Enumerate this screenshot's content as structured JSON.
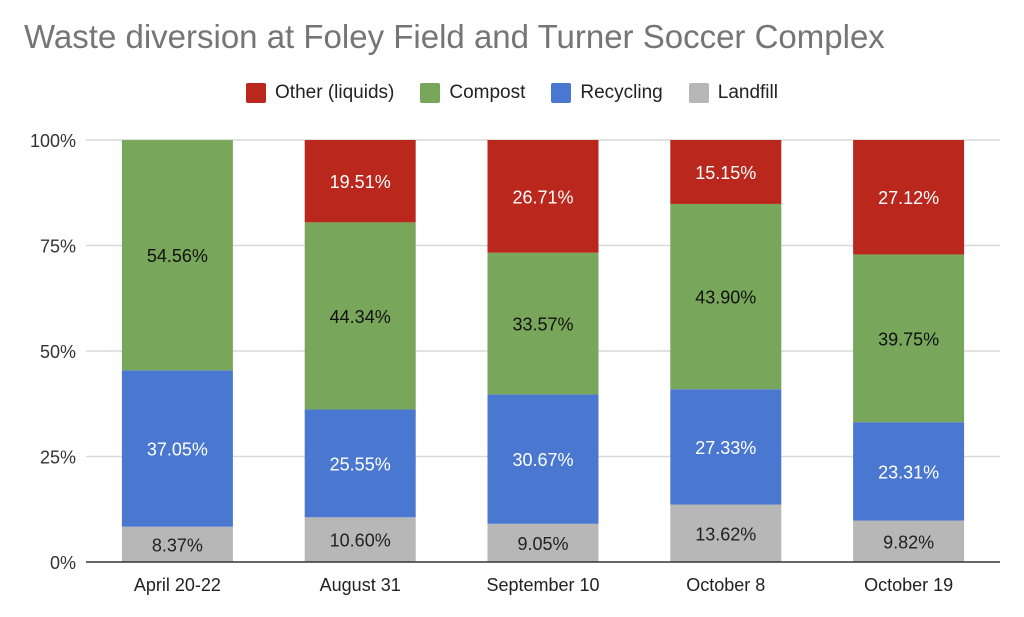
{
  "chart_data": {
    "type": "bar",
    "stacked": "percent",
    "title": "Waste diversion at Foley Field and Turner Soccer Complex",
    "xlabel": "",
    "ylabel": "",
    "ylim": [
      0,
      100
    ],
    "yticks": [
      "0%",
      "25%",
      "50%",
      "75%",
      "100%"
    ],
    "grid": true,
    "legend_position": "top",
    "categories": [
      "April 20-22",
      "August 31",
      "September 10",
      "October 8",
      "October 19"
    ],
    "series": [
      {
        "name": "Landfill",
        "color": "#b7b7b7",
        "label_color": "#222222",
        "values": [
          8.37,
          10.6,
          9.05,
          13.62,
          9.82
        ],
        "labels": [
          "8.37%",
          "10.60%",
          "9.05%",
          "13.62%",
          "9.82%"
        ]
      },
      {
        "name": "Recycling",
        "color": "#4a78d1",
        "label_color": "#ffffff",
        "values": [
          37.05,
          25.55,
          30.67,
          27.33,
          23.31
        ],
        "labels": [
          "37.05%",
          "25.55%",
          "30.67%",
          "27.33%",
          "23.31%"
        ]
      },
      {
        "name": "Compost",
        "color": "#78a65a",
        "label_color": "#111111",
        "values": [
          54.56,
          44.34,
          33.57,
          43.9,
          39.75
        ],
        "labels": [
          "54.56%",
          "44.34%",
          "33.57%",
          "43.90%",
          "39.75%"
        ]
      },
      {
        "name": "Other (liquids)",
        "color": "#b9271d",
        "label_color": "#ffffff",
        "values": [
          0,
          19.51,
          26.71,
          15.15,
          27.12
        ],
        "labels": [
          "",
          "19.51%",
          "26.71%",
          "15.15%",
          "27.12%"
        ]
      }
    ],
    "legend_order": [
      "Other (liquids)",
      "Compost",
      "Recycling",
      "Landfill"
    ]
  }
}
